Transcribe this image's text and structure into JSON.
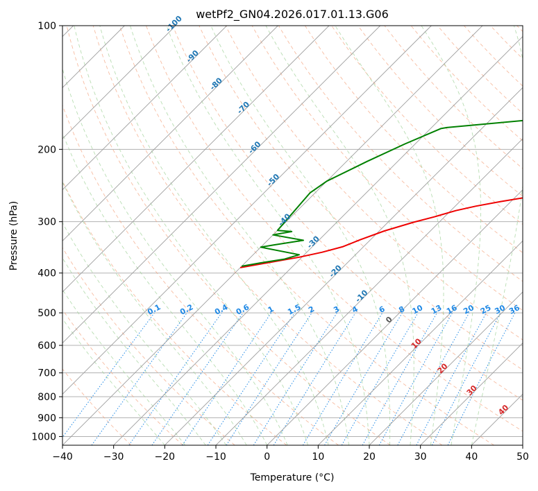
{
  "chart_data": {
    "type": "line",
    "title": "wetPf2_GN04.2026.017.01.13.G06",
    "xlabel": "Temperature (°C)",
    "ylabel": "Pressure (hPa)",
    "xlim": [
      -40,
      50
    ],
    "ylim": [
      1050,
      100
    ],
    "y_scale": "log",
    "x_ticks": [
      -40,
      -30,
      -20,
      -10,
      0,
      10,
      20,
      30,
      40,
      50
    ],
    "x_tick_labels": [
      "−40",
      "−30",
      "−20",
      "−10",
      "0",
      "10",
      "20",
      "30",
      "40",
      "50"
    ],
    "y_ticks": [
      100,
      200,
      300,
      400,
      500,
      600,
      700,
      800,
      900,
      1000
    ],
    "y_tick_labels": [
      "100",
      "200",
      "300",
      "400",
      "500",
      "600",
      "700",
      "800",
      "900",
      "1000"
    ],
    "skew": 45,
    "isotherms": [
      -130,
      -120,
      -110,
      -100,
      -90,
      -80,
      -70,
      -60,
      -50,
      -40,
      -30,
      -20,
      -10,
      0,
      10,
      20,
      30,
      40,
      50
    ],
    "dry_adiabat_labels": [
      "-100",
      "-90",
      "-80",
      "-70",
      "-60",
      "-50",
      "-40",
      "-30",
      "-20",
      "-10",
      "0"
    ],
    "dry_adiabat_label_temps": [
      -100,
      -90,
      -80,
      -70,
      -60,
      -50,
      -40,
      -30,
      -20,
      -10,
      0
    ],
    "moist_adiabat_labels": [
      "10",
      "20",
      "30",
      "40"
    ],
    "moist_adiabat_label_temps": [
      10,
      20,
      30,
      40
    ],
    "mixing_ratio_labels": [
      "0.1",
      "0.2",
      "0.4",
      "0.6",
      "1",
      "1.5",
      "2",
      "3",
      "4",
      "6",
      "8",
      "10",
      "13",
      "16",
      "20",
      "25",
      "30",
      "36"
    ],
    "mixing_ratio_values": [
      0.1,
      0.2,
      0.4,
      0.6,
      1,
      1.5,
      2,
      3,
      4,
      6,
      8,
      10,
      13,
      16,
      20,
      25,
      30,
      36
    ],
    "series": [
      {
        "kind": "temperature",
        "color": "#ee0000",
        "points": [
          [
            -40,
            388
          ],
          [
            -30.5,
            366
          ],
          [
            -27,
            356
          ],
          [
            -24,
            345
          ],
          [
            -22,
            332
          ],
          [
            -19,
            316
          ],
          [
            -15,
            301
          ],
          [
            -12,
            292
          ],
          [
            -9,
            282
          ],
          [
            -6,
            275
          ],
          [
            -2,
            268
          ],
          [
            2,
            262
          ],
          [
            5,
            255
          ],
          [
            8.5,
            247
          ],
          [
            10.5,
            238
          ],
          [
            12,
            228
          ],
          [
            13.5,
            219
          ],
          [
            16,
            210
          ],
          [
            18.5,
            200
          ],
          [
            21,
            191
          ],
          [
            23.5,
            183
          ],
          [
            26,
            175
          ],
          [
            28,
            167
          ],
          [
            31,
            159
          ],
          [
            33.5,
            151
          ],
          [
            36.5,
            143
          ],
          [
            39.5,
            135
          ],
          [
            42,
            128
          ],
          [
            45,
            121
          ],
          [
            48.5,
            113
          ],
          [
            53,
            106
          ],
          [
            57,
            100
          ]
        ]
      },
      {
        "kind": "dewpoint",
        "color": "#008000",
        "points": [
          [
            -40,
            385
          ],
          [
            -37,
            378
          ],
          [
            -33,
            370
          ],
          [
            -31,
            361
          ],
          [
            -40,
            346
          ],
          [
            -38,
            342
          ],
          [
            -33,
            333
          ],
          [
            -40,
            323
          ],
          [
            -37,
            317
          ],
          [
            -40,
            315
          ],
          [
            -41,
            255
          ],
          [
            -40,
            239
          ],
          [
            -36,
            214
          ],
          [
            -32,
            194
          ],
          [
            -28,
            178
          ],
          [
            -27,
            177
          ],
          [
            -13,
            170
          ],
          [
            -10,
            168
          ],
          [
            -7,
            160
          ],
          [
            -4,
            151
          ],
          [
            -2,
            143
          ],
          [
            0,
            136
          ],
          [
            2,
            129
          ],
          [
            4,
            122
          ],
          [
            6,
            115
          ],
          [
            7,
            108
          ],
          [
            6.5,
            103
          ],
          [
            6,
            100
          ]
        ]
      }
    ]
  }
}
